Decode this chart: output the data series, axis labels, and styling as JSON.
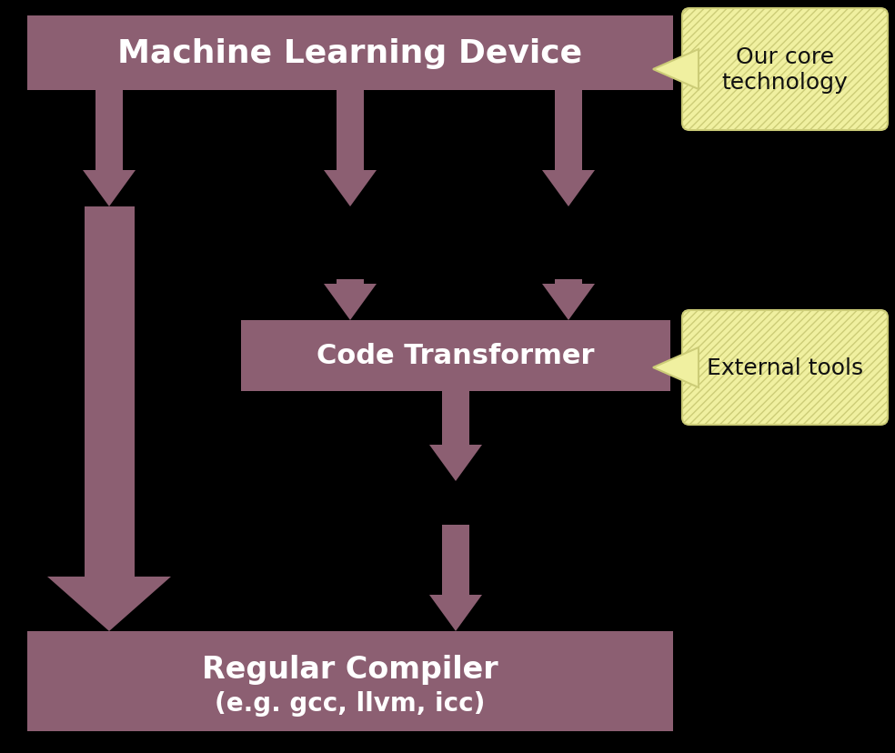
{
  "bg_color": "#000000",
  "box_color": "#8c5f72",
  "arrow_color": "#8c5f72",
  "callout_bg": "#f0f0a0",
  "callout_edge": "#cccc77",
  "title_text": "Machine Learning Device",
  "compiler_text1": "Regular Compiler",
  "compiler_text2": "(e.g. gcc, llvm, icc)",
  "transformer_text": "Code Transformer",
  "callout1_text": "Our core\ntechnology",
  "callout2_text": "External tools",
  "text_color_white": "#ffffff",
  "text_color_black": "#111111",
  "font_size_title": 26,
  "font_size_compiler1": 24,
  "font_size_compiler2": 20,
  "font_size_transformer": 22,
  "font_size_callout": 18
}
